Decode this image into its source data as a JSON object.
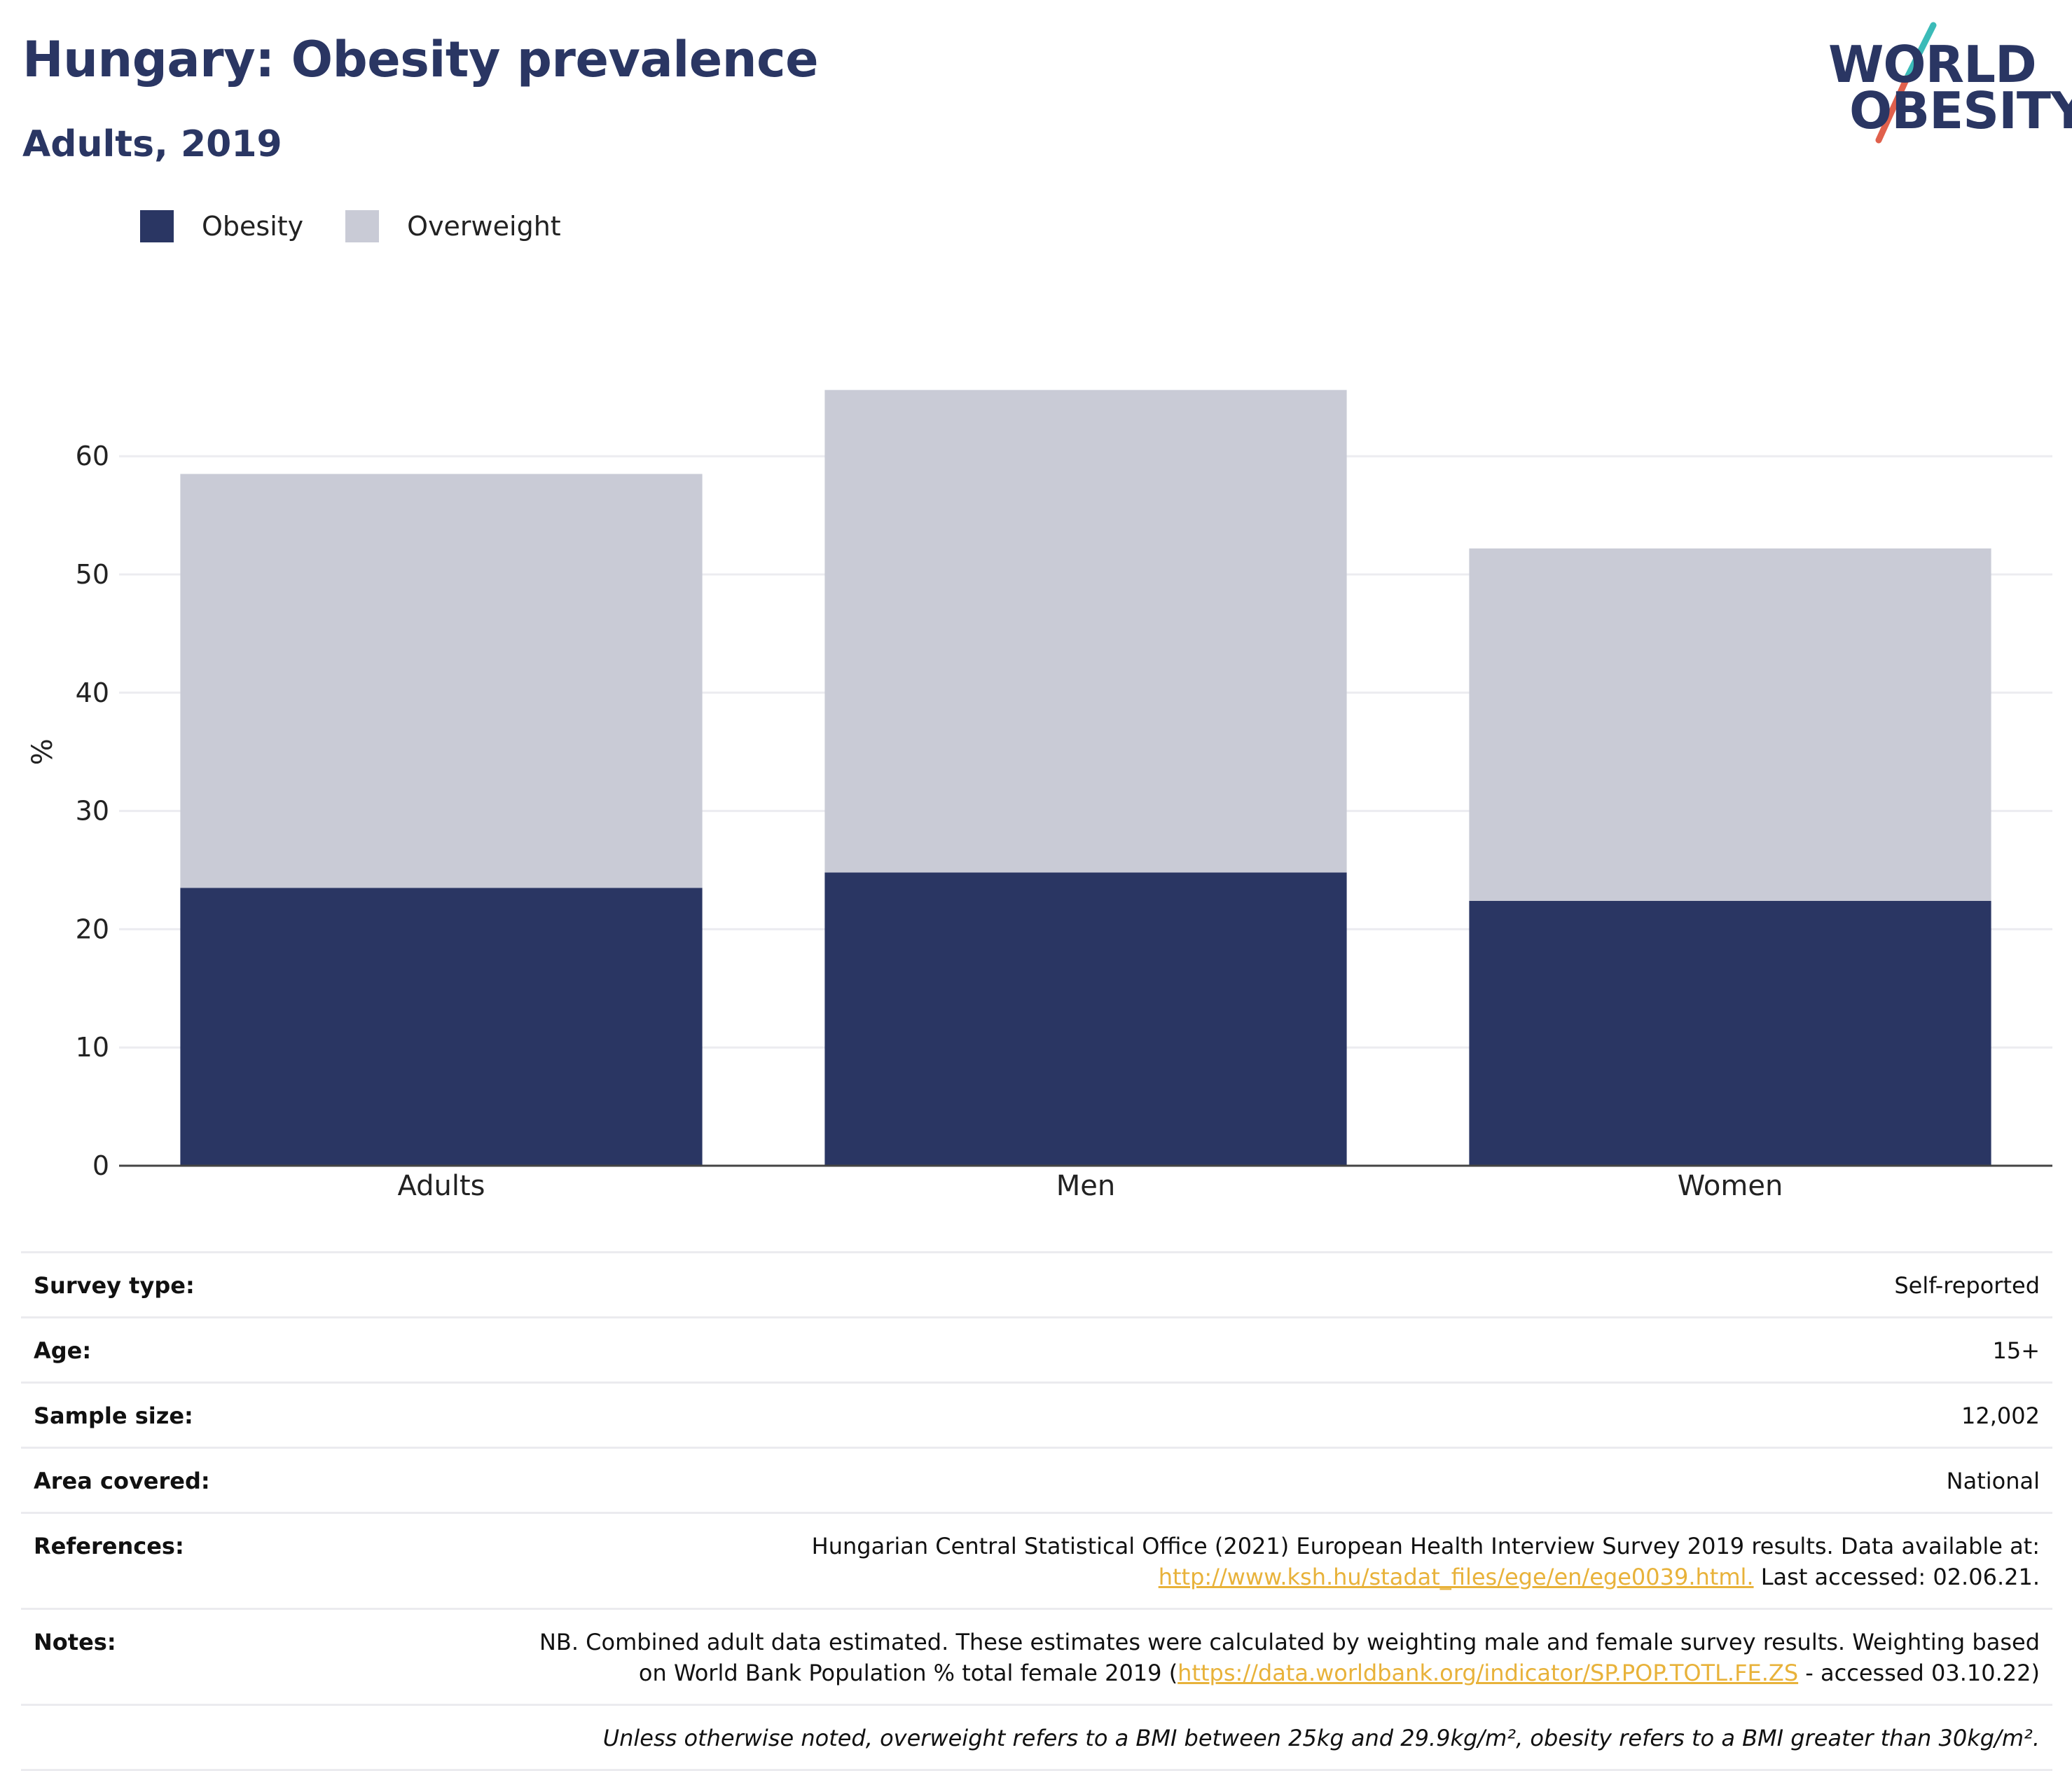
{
  "header": {
    "title": "Hungary: Obesity prevalence",
    "subtitle": "Adults, 2019"
  },
  "logo": {
    "line1": "WORLD",
    "line2": "OBESITY",
    "colors": {
      "text": "#2a3663",
      "slash_top": "#3bbbb8",
      "slash_bottom": "#e0604c"
    }
  },
  "legend": [
    {
      "label": "Obesity",
      "color": "#2a3663"
    },
    {
      "label": "Overweight",
      "color": "#c9cbd6"
    }
  ],
  "chart_data": {
    "type": "bar",
    "stacked": true,
    "categories": [
      "Adults",
      "Men",
      "Women"
    ],
    "series": [
      {
        "name": "Obesity",
        "color": "#2a3663",
        "values": [
          23.5,
          24.8,
          22.4
        ]
      },
      {
        "name": "Overweight",
        "color": "#c9cbd6",
        "values": [
          35.0,
          40.8,
          29.8
        ]
      }
    ],
    "totals": [
      58.5,
      65.6,
      52.2
    ],
    "ylabel": "%",
    "xlabel": "",
    "ylim": [
      0,
      70
    ],
    "yticks": [
      0,
      10,
      20,
      30,
      40,
      50,
      60
    ],
    "grid": true,
    "legend_position": "top-left"
  },
  "info": {
    "survey_type": {
      "label": "Survey type:",
      "value": "Self-reported"
    },
    "age": {
      "label": "Age:",
      "value": "15+"
    },
    "sample_size": {
      "label": "Sample size:",
      "value": "12,002"
    },
    "area": {
      "label": "Area covered:",
      "value": "National"
    },
    "references": {
      "label": "References:",
      "text1": "Hungarian Central Statistical Office (2021) European Health Interview Survey 2019 results. Data available at:",
      "link": "http://www.ksh.hu/stadat_files/ege/en/ege0039.html.",
      "text2": " Last accessed: 02.06.21."
    },
    "notes": {
      "label": "Notes:",
      "text1": "NB. Combined adult data estimated. These estimates were calculated by weighting male and female survey results. Weighting based",
      "text2": "on World Bank Population % total female 2019 (",
      "link": "https://data.worldbank.org/indicator/SP.POP.TOTL.FE.ZS",
      "text3": " - accessed 03.10.22)"
    },
    "footnote": "Unless otherwise noted, overweight refers to a BMI between 25kg and 29.9kg/m², obesity refers to a BMI greater than 30kg/m²."
  }
}
